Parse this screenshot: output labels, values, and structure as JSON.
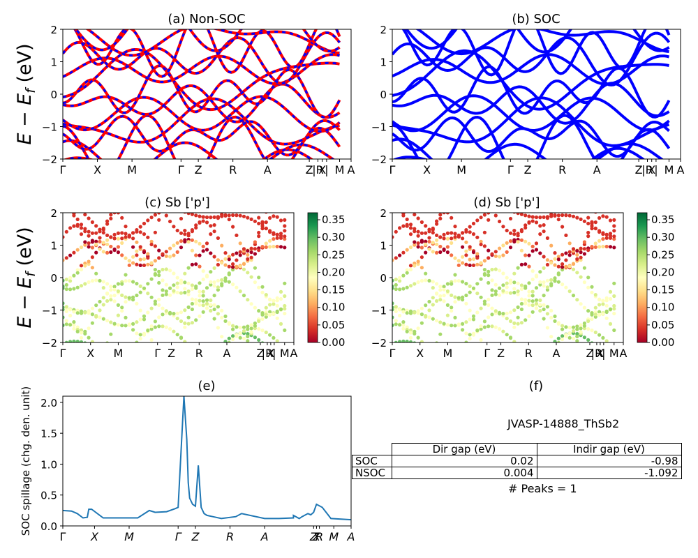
{
  "ylabel_main": "E − E_f (eV)",
  "kpath_labels": [
    "Γ",
    "X",
    "M",
    "Γ",
    "Z",
    "R",
    "A",
    "Z",
    "|R",
    "X",
    "|",
    "M",
    "A"
  ],
  "kpath_labels_e": [
    "Γ",
    "X",
    "M",
    "Γ",
    "Z",
    "R",
    "A",
    "Z",
    "X",
    "R",
    "M",
    "A"
  ],
  "colorbar": {
    "ticks": [
      "0.00",
      "0.05",
      "0.10",
      "0.15",
      "0.20",
      "0.25",
      "0.30",
      "0.35"
    ],
    "min": 0,
    "max": 0.37
  },
  "chart_data": [
    {
      "id": "a",
      "type": "line",
      "title": "(a) Non-SOC",
      "ylim": [
        -2,
        2
      ],
      "yticks": [
        "2",
        "1",
        "0",
        "−1",
        "−2"
      ],
      "colors": [
        "#ff0000",
        "#0000ff"
      ]
    },
    {
      "id": "b",
      "type": "line",
      "title": "(b) SOC",
      "ylim": [
        -2,
        2
      ],
      "yticks": [
        "2",
        "1",
        "0",
        "−1",
        "−2"
      ],
      "colors": [
        "#0000ff"
      ]
    },
    {
      "id": "c",
      "type": "scatter",
      "title": "(c)  Sb ['p']",
      "ylim": [
        -2,
        2
      ],
      "yticks": [
        "2",
        "1",
        "0",
        "−1",
        "−2"
      ]
    },
    {
      "id": "d",
      "type": "scatter",
      "title": "(d) Sb ['p']",
      "ylim": [
        -2,
        2
      ],
      "yticks": [
        "2",
        "1",
        "0",
        "−1",
        "−2"
      ]
    },
    {
      "id": "e",
      "type": "line",
      "title": "(e)",
      "ylabel": "SOC spillage (chg. den. unit)",
      "ylim": [
        0,
        2.1
      ],
      "yticks": [
        "0.0",
        "0.5",
        "1.0",
        "1.5",
        "2.0"
      ],
      "x": [
        0,
        0.03,
        0.05,
        0.07,
        0.085,
        0.09,
        0.1,
        0.14,
        0.15,
        0.2,
        0.26,
        0.3,
        0.32,
        0.36,
        0.39,
        0.4,
        0.42,
        0.43,
        0.435,
        0.44,
        0.45,
        0.46,
        0.47,
        0.48,
        0.49,
        0.5,
        0.52,
        0.55,
        0.6,
        0.62,
        0.7,
        0.75,
        0.8,
        0.8,
        0.82,
        0.83,
        0.85,
        0.86,
        0.87,
        0.88,
        0.9,
        0.93,
        1.0
      ],
      "values": [
        0.25,
        0.24,
        0.2,
        0.13,
        0.14,
        0.27,
        0.27,
        0.13,
        0.13,
        0.13,
        0.13,
        0.25,
        0.22,
        0.23,
        0.28,
        0.3,
        2.1,
        1.4,
        0.7,
        0.45,
        0.35,
        0.32,
        0.98,
        0.3,
        0.2,
        0.17,
        0.15,
        0.12,
        0.15,
        0.2,
        0.12,
        0.12,
        0.13,
        0.17,
        0.12,
        0.15,
        0.2,
        0.18,
        0.22,
        0.35,
        0.3,
        0.12,
        0.1
      ]
    },
    {
      "id": "f",
      "type": "table",
      "title": "(f)"
    }
  ],
  "table_f": {
    "formula_label": "JVASP-14888_ThSb2",
    "headers": [
      "Dir gap (eV)",
      "Indir gap (eV)"
    ],
    "rows": [
      {
        "label": "SOC",
        "dir": "0.02",
        "indir": "-0.98"
      },
      {
        "label": "NSOC",
        "dir": "0.004",
        "indir": "-1.092"
      }
    ],
    "peaks": "# Peaks = 1"
  }
}
